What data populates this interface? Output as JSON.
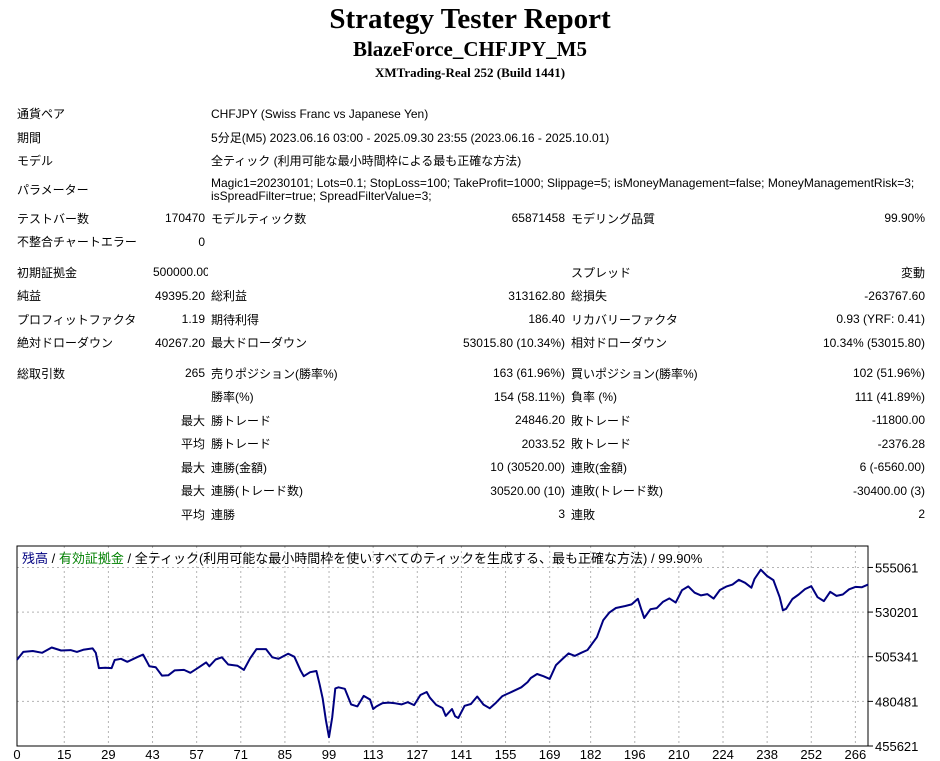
{
  "header": {
    "title": "Strategy Tester Report",
    "ea_name": "BlazeForce_CHFJPY_M5",
    "server": "XMTrading-Real 252 (Build 1441)"
  },
  "report": {
    "symbol_label": "通貨ペア",
    "symbol_value": "CHFJPY (Swiss Franc vs Japanese Yen)",
    "period_label": "期間",
    "period_value": "5分足(M5) 2023.06.16 03:00 - 2025.09.30 23:55 (2023.06.16 - 2025.10.01)",
    "model_label": "モデル",
    "model_value": "全ティック (利用可能な最小時間枠による最も正確な方法)",
    "params_label": "パラメーター",
    "params_value": "Magic1=20230101; Lots=0.1; StopLoss=100; TakeProfit=1000; Slippage=5; isMoneyManagement=false; MoneyManagementRisk=3; isSpreadFilter=true; SpreadFilterValue=3;",
    "bars_label": "テストバー数",
    "bars_value": "170470",
    "ticks_label": "モデルティック数",
    "ticks_value": "65871458",
    "quality_label": "モデリング品質",
    "quality_value": "99.90%",
    "mismatch_label": "不整合チャートエラー",
    "mismatch_value": "0",
    "deposit_label": "初期証拠金",
    "deposit_value": "500000.00",
    "spread_label": "スプレッド",
    "spread_value": "変動",
    "net_label": "純益",
    "net_value": "49395.20",
    "gross_profit_label": "総利益",
    "gross_profit_value": "313162.80",
    "gross_loss_label": "総損失",
    "gross_loss_value": "-263767.60",
    "pf_label": "プロフィットファクタ",
    "pf_value": "1.19",
    "expected_label": "期待利得",
    "expected_value": "186.40",
    "recovery_label": "リカバリーファクタ",
    "recovery_value": "0.93 (YRF: 0.41)",
    "abs_dd_label": "絶対ドローダウン",
    "abs_dd_value": "40267.20",
    "max_dd_label": "最大ドローダウン",
    "max_dd_value": "53015.80 (10.34%)",
    "rel_dd_label": "相対ドローダウン",
    "rel_dd_value": "10.34% (53015.80)",
    "trades_label": "総取引数",
    "trades_value": "265",
    "short_label": "売りポジション(勝率%)",
    "short_value": "163 (61.96%)",
    "long_label": "買いポジション(勝率%)",
    "long_value": "102 (51.96%)",
    "win_rate_label": "勝率(%)",
    "win_rate_value": "154 (58.11%)",
    "loss_rate_label": "負率 (%)",
    "loss_rate_value": "111 (41.89%)",
    "max_word": "最大",
    "avg_word": "平均",
    "win_trade_label": "勝トレード",
    "loss_trade_label": "敗トレード",
    "max_win_trade_value": "24846.20",
    "max_loss_trade_value": "-11800.00",
    "avg_win_trade_value": "2033.52",
    "avg_loss_trade_value": "-2376.28",
    "cons_win_amount_label": "連勝(金額)",
    "cons_win_amount_value": "10 (30520.00)",
    "cons_loss_amount_label": "連敗(金額)",
    "cons_loss_amount_value": "6 (-6560.00)",
    "cons_win_trades_label": "連勝(トレード数)",
    "cons_win_trades_value": "30520.00 (10)",
    "cons_loss_trades_label": "連敗(トレード数)",
    "cons_loss_trades_value": "-30400.00 (3)",
    "avg_cons_win_label": "連勝",
    "avg_cons_win_value": "3",
    "avg_cons_loss_label": "連敗",
    "avg_cons_loss_value": "2"
  },
  "chart_data": {
    "type": "line",
    "legend": {
      "balance": "残高",
      "sep1": " / ",
      "equity": "有効証拠金",
      "sep2": " / ",
      "model": "全ティック(利用可能な最小時間枠を使いすべてのティックを生成する、最も正確な方法)",
      "sep3": " / ",
      "quality": "99.90%"
    },
    "legend_placement": "top-left",
    "colors": {
      "line": "#000080",
      "balance_text": "#000080",
      "equity_text": "#008000",
      "grid": "#b4b4b4",
      "frame": "#000000"
    },
    "grid": true,
    "x_ticks": [
      0,
      15,
      29,
      43,
      57,
      71,
      85,
      99,
      113,
      127,
      141,
      155,
      169,
      182,
      196,
      210,
      224,
      238,
      252,
      266
    ],
    "y_ticks": [
      455621,
      480481,
      505341,
      530201,
      555061
    ],
    "xlim": [
      0,
      270
    ],
    "ylim": [
      455621,
      567000
    ],
    "series": [
      {
        "points": [
          [
            0,
            503600
          ],
          [
            2,
            508000
          ],
          [
            5,
            508500
          ],
          [
            8,
            507500
          ],
          [
            11,
            510500
          ],
          [
            14,
            508800
          ],
          [
            17,
            509000
          ],
          [
            19,
            508000
          ],
          [
            21,
            509200
          ],
          [
            24,
            510000
          ],
          [
            25,
            507500
          ],
          [
            26,
            499000
          ],
          [
            28,
            499200
          ],
          [
            30,
            499000
          ],
          [
            31,
            503500
          ],
          [
            33,
            504200
          ],
          [
            35,
            502500
          ],
          [
            38,
            505000
          ],
          [
            40,
            506500
          ],
          [
            42,
            500000
          ],
          [
            44,
            499500
          ],
          [
            46,
            494800
          ],
          [
            48,
            495000
          ],
          [
            50,
            497700
          ],
          [
            53,
            498000
          ],
          [
            55,
            496400
          ],
          [
            58,
            499800
          ],
          [
            60,
            502200
          ],
          [
            61,
            500000
          ],
          [
            63,
            503800
          ],
          [
            65,
            505000
          ],
          [
            67,
            501000
          ],
          [
            70,
            500300
          ],
          [
            72,
            498000
          ],
          [
            74,
            504500
          ],
          [
            76,
            509600
          ],
          [
            79,
            509600
          ],
          [
            81,
            505000
          ],
          [
            83,
            504200
          ],
          [
            86,
            507000
          ],
          [
            88,
            505300
          ],
          [
            90,
            497500
          ],
          [
            91,
            494500
          ],
          [
            93,
            496700
          ],
          [
            95,
            497400
          ],
          [
            96,
            490000
          ],
          [
            97,
            482000
          ],
          [
            98,
            470000
          ],
          [
            99,
            460500
          ],
          [
            100,
            471500
          ],
          [
            101,
            487700
          ],
          [
            102,
            488300
          ],
          [
            104,
            487500
          ],
          [
            106,
            478800
          ],
          [
            108,
            477700
          ],
          [
            110,
            483500
          ],
          [
            112,
            481500
          ],
          [
            113,
            476200
          ],
          [
            114,
            477600
          ],
          [
            116,
            479500
          ],
          [
            118,
            479800
          ],
          [
            120,
            479400
          ],
          [
            122,
            478800
          ],
          [
            124,
            480000
          ],
          [
            126,
            478400
          ],
          [
            128,
            484000
          ],
          [
            130,
            485700
          ],
          [
            131,
            482500
          ],
          [
            133,
            478500
          ],
          [
            135,
            476800
          ],
          [
            136,
            472400
          ],
          [
            138,
            476200
          ],
          [
            139,
            472200
          ],
          [
            140,
            471200
          ],
          [
            142,
            478000
          ],
          [
            144,
            479000
          ],
          [
            146,
            483200
          ],
          [
            148,
            478700
          ],
          [
            150,
            476600
          ],
          [
            152,
            479800
          ],
          [
            154,
            483400
          ],
          [
            157,
            485800
          ],
          [
            160,
            488300
          ],
          [
            162,
            491200
          ],
          [
            163,
            493500
          ],
          [
            165,
            495700
          ],
          [
            167,
            494500
          ],
          [
            169,
            493000
          ],
          [
            171,
            500700
          ],
          [
            173,
            504000
          ],
          [
            175,
            507200
          ],
          [
            177,
            505800
          ],
          [
            179,
            507500
          ],
          [
            181,
            509100
          ],
          [
            184,
            516200
          ],
          [
            186,
            525600
          ],
          [
            188,
            530000
          ],
          [
            190,
            532500
          ],
          [
            193,
            533600
          ],
          [
            195,
            534500
          ],
          [
            197,
            537600
          ],
          [
            198,
            532000
          ],
          [
            199,
            526900
          ],
          [
            201,
            531800
          ],
          [
            203,
            532400
          ],
          [
            205,
            536000
          ],
          [
            207,
            537800
          ],
          [
            209,
            535500
          ],
          [
            211,
            542400
          ],
          [
            213,
            544500
          ],
          [
            215,
            541000
          ],
          [
            217,
            539500
          ],
          [
            219,
            540200
          ],
          [
            221,
            537700
          ],
          [
            223,
            542500
          ],
          [
            225,
            544400
          ],
          [
            227,
            545500
          ],
          [
            229,
            548200
          ],
          [
            231,
            546500
          ],
          [
            233,
            543800
          ],
          [
            234,
            548600
          ],
          [
            236,
            553800
          ],
          [
            238,
            550300
          ],
          [
            240,
            548000
          ],
          [
            242,
            538500
          ],
          [
            243,
            531200
          ],
          [
            244,
            532000
          ],
          [
            246,
            537500
          ],
          [
            248,
            540000
          ],
          [
            250,
            543000
          ],
          [
            252,
            544600
          ],
          [
            254,
            538500
          ],
          [
            256,
            536300
          ],
          [
            258,
            541500
          ],
          [
            260,
            539200
          ],
          [
            262,
            540000
          ],
          [
            264,
            542900
          ],
          [
            266,
            544200
          ],
          [
            268,
            544000
          ],
          [
            270,
            545500
          ]
        ]
      }
    ]
  }
}
